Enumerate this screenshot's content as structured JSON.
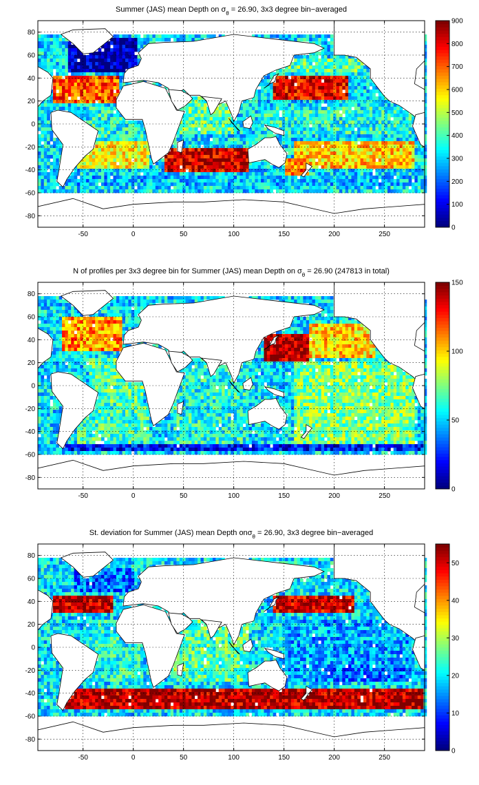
{
  "chart_data": [
    {
      "type": "heatmap",
      "title_pre": "Summer (JAS) mean Depth on ",
      "title_sym": "σ",
      "title_sub": "θ",
      "title_post": " = 26.90, 3x3 degree bin−averaged",
      "xticks": [
        "-50",
        "0",
        "50",
        "100",
        "150",
        "200",
        "250"
      ],
      "yticks": [
        "80",
        "60",
        "40",
        "20",
        "0",
        "-20",
        "-40",
        "-60",
        "-80"
      ],
      "xlim": [
        -95,
        290
      ],
      "ylim": [
        -90,
        90
      ],
      "grid": true,
      "colorbar": {
        "min": 0,
        "max": 900,
        "ticks": [
          "0",
          "100",
          "200",
          "300",
          "400",
          "500",
          "600",
          "700",
          "800",
          "900"
        ]
      },
      "regions": [
        {
          "name": "north-atlantic-subpolar",
          "lon": [
            -65,
            5
          ],
          "lat": [
            45,
            75
          ],
          "value": 40
        },
        {
          "name": "north-atlantic-gyre",
          "lon": [
            -80,
            -15
          ],
          "lat": [
            18,
            42
          ],
          "value": 720
        },
        {
          "name": "tropical-atlantic",
          "lon": [
            -45,
            10
          ],
          "lat": [
            -15,
            15
          ],
          "value": 360
        },
        {
          "name": "south-atlantic",
          "lon": [
            -55,
            15
          ],
          "lat": [
            -40,
            -15
          ],
          "value": 560
        },
        {
          "name": "southern-ocean-band",
          "lon": [
            -70,
            290
          ],
          "lat": [
            -55,
            -45
          ],
          "value": 280
        },
        {
          "name": "indian-ocean-north",
          "lon": [
            45,
            100
          ],
          "lat": [
            -10,
            25
          ],
          "value": 420
        },
        {
          "name": "south-indian-max",
          "lon": [
            30,
            115
          ],
          "lat": [
            -42,
            -20
          ],
          "value": 830
        },
        {
          "name": "north-pacific-max",
          "lon": [
            140,
            215
          ],
          "lat": [
            20,
            42
          ],
          "value": 800
        },
        {
          "name": "subpolar-pacific",
          "lon": [
            150,
            230
          ],
          "lat": [
            45,
            58
          ],
          "value": 420
        },
        {
          "name": "equatorial-pacific",
          "lon": [
            130,
            280
          ],
          "lat": [
            -10,
            15
          ],
          "value": 360
        },
        {
          "name": "south-pacific",
          "lon": [
            160,
            280
          ],
          "lat": [
            -40,
            -15
          ],
          "value": 600
        },
        {
          "name": "tasman-sea",
          "lon": [
            150,
            175
          ],
          "lat": [
            -45,
            -30
          ],
          "value": 700
        }
      ]
    },
    {
      "type": "heatmap",
      "title_pre": "N of profiles per 3x3 degree bin for Summer (JAS) mean Depth on ",
      "title_sym": "σ",
      "title_sub": "θ",
      "title_post": " = 26.90 (247813 in total)",
      "xticks": [
        "-50",
        "0",
        "50",
        "100",
        "150",
        "200",
        "250"
      ],
      "yticks": [
        "80",
        "60",
        "40",
        "20",
        "0",
        "-20",
        "-40",
        "-60",
        "-80"
      ],
      "xlim": [
        -95,
        290
      ],
      "ylim": [
        -90,
        90
      ],
      "grid": true,
      "colorbar": {
        "min": 0,
        "max": 150,
        "ticks": [
          "0",
          "50",
          "100",
          "150"
        ]
      },
      "regions": [
        {
          "name": "north-atlantic",
          "lon": [
            -70,
            -10
          ],
          "lat": [
            30,
            60
          ],
          "value": 110
        },
        {
          "name": "tropical-atlantic",
          "lon": [
            -45,
            10
          ],
          "lat": [
            -15,
            25
          ],
          "value": 70
        },
        {
          "name": "south-atlantic",
          "lon": [
            -55,
            15
          ],
          "lat": [
            -50,
            -15
          ],
          "value": 65
        },
        {
          "name": "indian-ocean",
          "lon": [
            40,
            115
          ],
          "lat": [
            -50,
            25
          ],
          "value": 60
        },
        {
          "name": "kuroshio",
          "lon": [
            130,
            175
          ],
          "lat": [
            20,
            45
          ],
          "value": 145
        },
        {
          "name": "north-pacific",
          "lon": [
            175,
            240
          ],
          "lat": [
            25,
            55
          ],
          "value": 100
        },
        {
          "name": "pacific-interior",
          "lon": [
            160,
            280
          ],
          "lat": [
            -50,
            20
          ],
          "value": 75
        },
        {
          "name": "southern-ocean-edge",
          "lon": [
            -70,
            290
          ],
          "lat": [
            -57,
            -50
          ],
          "value": 20
        }
      ]
    },
    {
      "type": "heatmap",
      "title_pre": "St. deviation for Summer (JAS) mean Depth on",
      "title_sym": "σ",
      "title_sub": "θ",
      "title_post": " = 26.90, 3x3 degree bin−averaged",
      "xticks": [
        "-50",
        "0",
        "50",
        "100",
        "150",
        "200",
        "250"
      ],
      "yticks": [
        "80",
        "60",
        "40",
        "20",
        "0",
        "-20",
        "-40",
        "-60",
        "-80"
      ],
      "xlim": [
        -95,
        290
      ],
      "ylim": [
        -90,
        90
      ],
      "grid": true,
      "colorbar": {
        "min": 0,
        "max": 55,
        "ticks": [
          "0",
          "10",
          "20",
          "30",
          "40",
          "50"
        ]
      },
      "regions": [
        {
          "name": "gulf-stream",
          "lon": [
            -80,
            -20
          ],
          "lat": [
            30,
            45
          ],
          "value": 52
        },
        {
          "name": "north-atlantic-subpolar",
          "lon": [
            -60,
            0
          ],
          "lat": [
            48,
            70
          ],
          "value": 12
        },
        {
          "name": "tropical-atlantic",
          "lon": [
            -45,
            10
          ],
          "lat": [
            -30,
            25
          ],
          "value": 22
        },
        {
          "name": "antarctic-circumpolar",
          "lon": [
            -70,
            290
          ],
          "lat": [
            -55,
            -35
          ],
          "value": 52
        },
        {
          "name": "indian-ocean",
          "lon": [
            40,
            115
          ],
          "lat": [
            -30,
            25
          ],
          "value": 25
        },
        {
          "name": "kuroshio-extension",
          "lon": [
            140,
            220
          ],
          "lat": [
            30,
            45
          ],
          "value": 50
        },
        {
          "name": "pacific-interior",
          "lon": [
            150,
            280
          ],
          "lat": [
            -30,
            25
          ],
          "value": 16
        },
        {
          "name": "south-pacific-gyre",
          "lon": [
            180,
            270
          ],
          "lat": [
            -30,
            -15
          ],
          "value": 10
        }
      ]
    }
  ]
}
